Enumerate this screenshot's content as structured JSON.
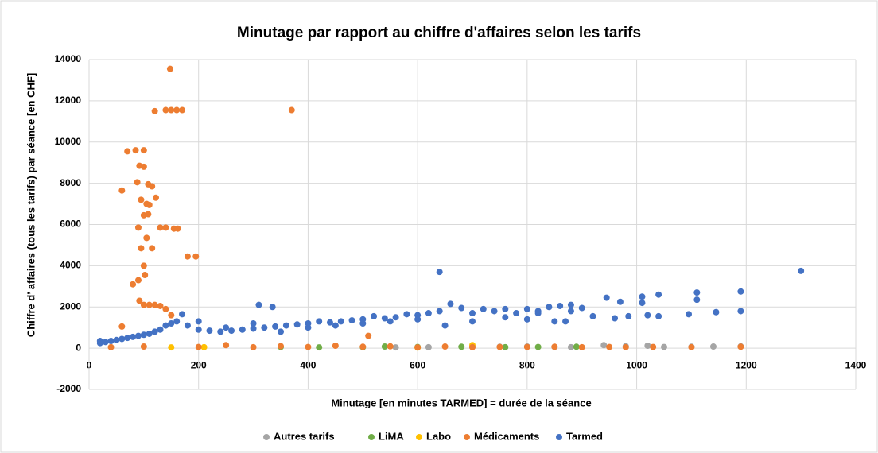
{
  "chart_data": {
    "type": "scatter",
    "title": "Minutage par rapport au chiffre d'affaires selon les tarifs",
    "x_label": "Minutage [en minutes TARMED] = durée de la séance",
    "y_label": "Chiffre d’  affaires (tous les tarifs) par séance [en CHF]",
    "xlim": [
      0,
      1400
    ],
    "xticks": [
      0,
      200,
      400,
      600,
      800,
      1000,
      1200,
      1400
    ],
    "ylim": [
      -2000,
      14000
    ],
    "yticks": [
      -2000,
      0,
      2000,
      4000,
      6000,
      8000,
      10000,
      12000,
      14000
    ],
    "grid": true,
    "legend": "bottom",
    "series": [
      {
        "name": "Autres tarifs",
        "color": "#a5a5a5",
        "x": [
          940,
          980,
          1020,
          1140,
          1190,
          700,
          750,
          620,
          800,
          850,
          880,
          1050,
          1100,
          560
        ],
        "values": [
          150,
          100,
          120,
          80,
          90,
          60,
          70,
          50,
          80,
          60,
          50,
          60,
          70,
          40
        ]
      },
      {
        "name": "LiMA",
        "color": "#70ad47",
        "x": [
          500,
          540,
          600,
          680,
          760,
          820,
          890,
          420,
          350
        ],
        "values": [
          50,
          80,
          60,
          70,
          50,
          60,
          70,
          40,
          60
        ]
      },
      {
        "name": "Labo",
        "color": "#ffc000",
        "x": [
          700,
          150,
          600,
          210
        ],
        "values": [
          150,
          40,
          30,
          50
        ]
      },
      {
        "name": "Médicaments",
        "color": "#ed7d31",
        "x": [
          148,
          120,
          140,
          150,
          160,
          170,
          370,
          70,
          85,
          100,
          92,
          100,
          108,
          115,
          88,
          60,
          122,
          95,
          105,
          110,
          100,
          108,
          90,
          130,
          140,
          155,
          162,
          105,
          95,
          115,
          180,
          195,
          100,
          102,
          80,
          90,
          92,
          100,
          110,
          120,
          130,
          140,
          60,
          150,
          510,
          40,
          100,
          200,
          300,
          400,
          500,
          600,
          700,
          800,
          900,
          980,
          1030,
          1100,
          1190,
          250,
          350,
          450,
          550,
          650,
          750,
          850,
          950
        ],
        "values": [
          13550,
          11500,
          11550,
          11550,
          11550,
          11550,
          11550,
          9550,
          9600,
          9600,
          8850,
          8800,
          7950,
          7850,
          8050,
          7650,
          7300,
          7200,
          7000,
          6950,
          6450,
          6500,
          5850,
          5850,
          5850,
          5800,
          5800,
          5350,
          4850,
          4850,
          4450,
          4450,
          4000,
          3550,
          3100,
          3300,
          2300,
          2100,
          2100,
          2100,
          2050,
          1900,
          1050,
          1600,
          600,
          50,
          80,
          60,
          50,
          60,
          70,
          40,
          50,
          60,
          50,
          50,
          60,
          50,
          70,
          150,
          100,
          120,
          90,
          80,
          60,
          70,
          60
        ]
      },
      {
        "name": "Tarmed",
        "color": "#4472c4",
        "x": [
          640,
          1300,
          1190,
          1110,
          1040,
          1010,
          1010,
          945,
          970,
          1110,
          1145,
          1190,
          1095,
          1040,
          1020,
          985,
          960,
          920,
          900,
          880,
          860,
          840,
          820,
          800,
          780,
          760,
          740,
          720,
          700,
          680,
          660,
          640,
          620,
          600,
          580,
          560,
          540,
          520,
          500,
          480,
          460,
          440,
          420,
          400,
          380,
          360,
          340,
          320,
          300,
          310,
          335,
          280,
          260,
          240,
          220,
          200,
          180,
          170,
          160,
          150,
          140,
          130,
          120,
          110,
          100,
          90,
          80,
          70,
          60,
          50,
          40,
          30,
          20,
          20,
          200,
          250,
          300,
          350,
          400,
          450,
          500,
          550,
          600,
          700,
          800,
          850,
          880,
          870,
          760,
          650,
          820
        ],
        "values": [
          3700,
          3750,
          2750,
          2700,
          2600,
          2500,
          2200,
          2450,
          2250,
          2350,
          1750,
          1800,
          1650,
          1550,
          1600,
          1550,
          1450,
          1550,
          1950,
          2100,
          2050,
          2000,
          1800,
          1900,
          1700,
          1900,
          1800,
          1900,
          1700,
          1950,
          2150,
          1800,
          1700,
          1600,
          1650,
          1500,
          1450,
          1550,
          1400,
          1350,
          1300,
          1250,
          1300,
          1200,
          1150,
          1100,
          1050,
          1000,
          950,
          2100,
          2000,
          900,
          850,
          800,
          850,
          900,
          1100,
          1650,
          1300,
          1200,
          1100,
          900,
          800,
          700,
          650,
          600,
          550,
          500,
          450,
          400,
          350,
          300,
          250,
          350,
          1300,
          1000,
          1200,
          800,
          1000,
          1100,
          1200,
          1300,
          1400,
          1300,
          1400,
          1300,
          1800,
          1300,
          1500,
          1100,
          1700
        ]
      }
    ]
  }
}
